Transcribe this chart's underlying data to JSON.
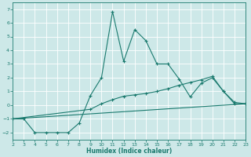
{
  "xlabel": "Humidex (Indice chaleur)",
  "xlim": [
    2,
    23
  ],
  "ylim": [
    -2.5,
    7.5
  ],
  "xticks": [
    2,
    3,
    4,
    5,
    6,
    7,
    8,
    9,
    10,
    11,
    12,
    13,
    14,
    15,
    16,
    17,
    18,
    19,
    20,
    21,
    22,
    23
  ],
  "yticks": [
    -2,
    -1,
    0,
    1,
    2,
    3,
    4,
    5,
    6,
    7
  ],
  "bg_color": "#cde8e8",
  "line_color": "#1a7a6e",
  "grid_color": "#ffffff",
  "series": {
    "main": {
      "x": [
        2,
        3,
        4,
        5,
        6,
        7,
        8,
        9,
        10,
        11,
        12,
        13,
        14,
        15,
        16,
        17,
        18,
        19,
        20,
        21,
        22,
        23
      ],
      "y": [
        -1,
        -1,
        -2,
        -2,
        -2,
        -2,
        -1.3,
        0.7,
        2.0,
        6.8,
        3.2,
        5.5,
        4.7,
        3.0,
        3.0,
        1.9,
        0.6,
        1.6,
        2.0,
        1.0,
        0.1,
        0.1
      ]
    },
    "upper": {
      "x": [
        2,
        9,
        10,
        11,
        12,
        13,
        14,
        15,
        16,
        17,
        18,
        19,
        20,
        21,
        22,
        23
      ],
      "y": [
        -1,
        -0.3,
        0.1,
        0.4,
        0.65,
        0.75,
        0.85,
        1.0,
        1.2,
        1.45,
        1.65,
        1.85,
        2.1,
        1.0,
        0.2,
        0.1
      ]
    },
    "lower": {
      "x": [
        2,
        23
      ],
      "y": [
        -1,
        0.1
      ]
    }
  }
}
